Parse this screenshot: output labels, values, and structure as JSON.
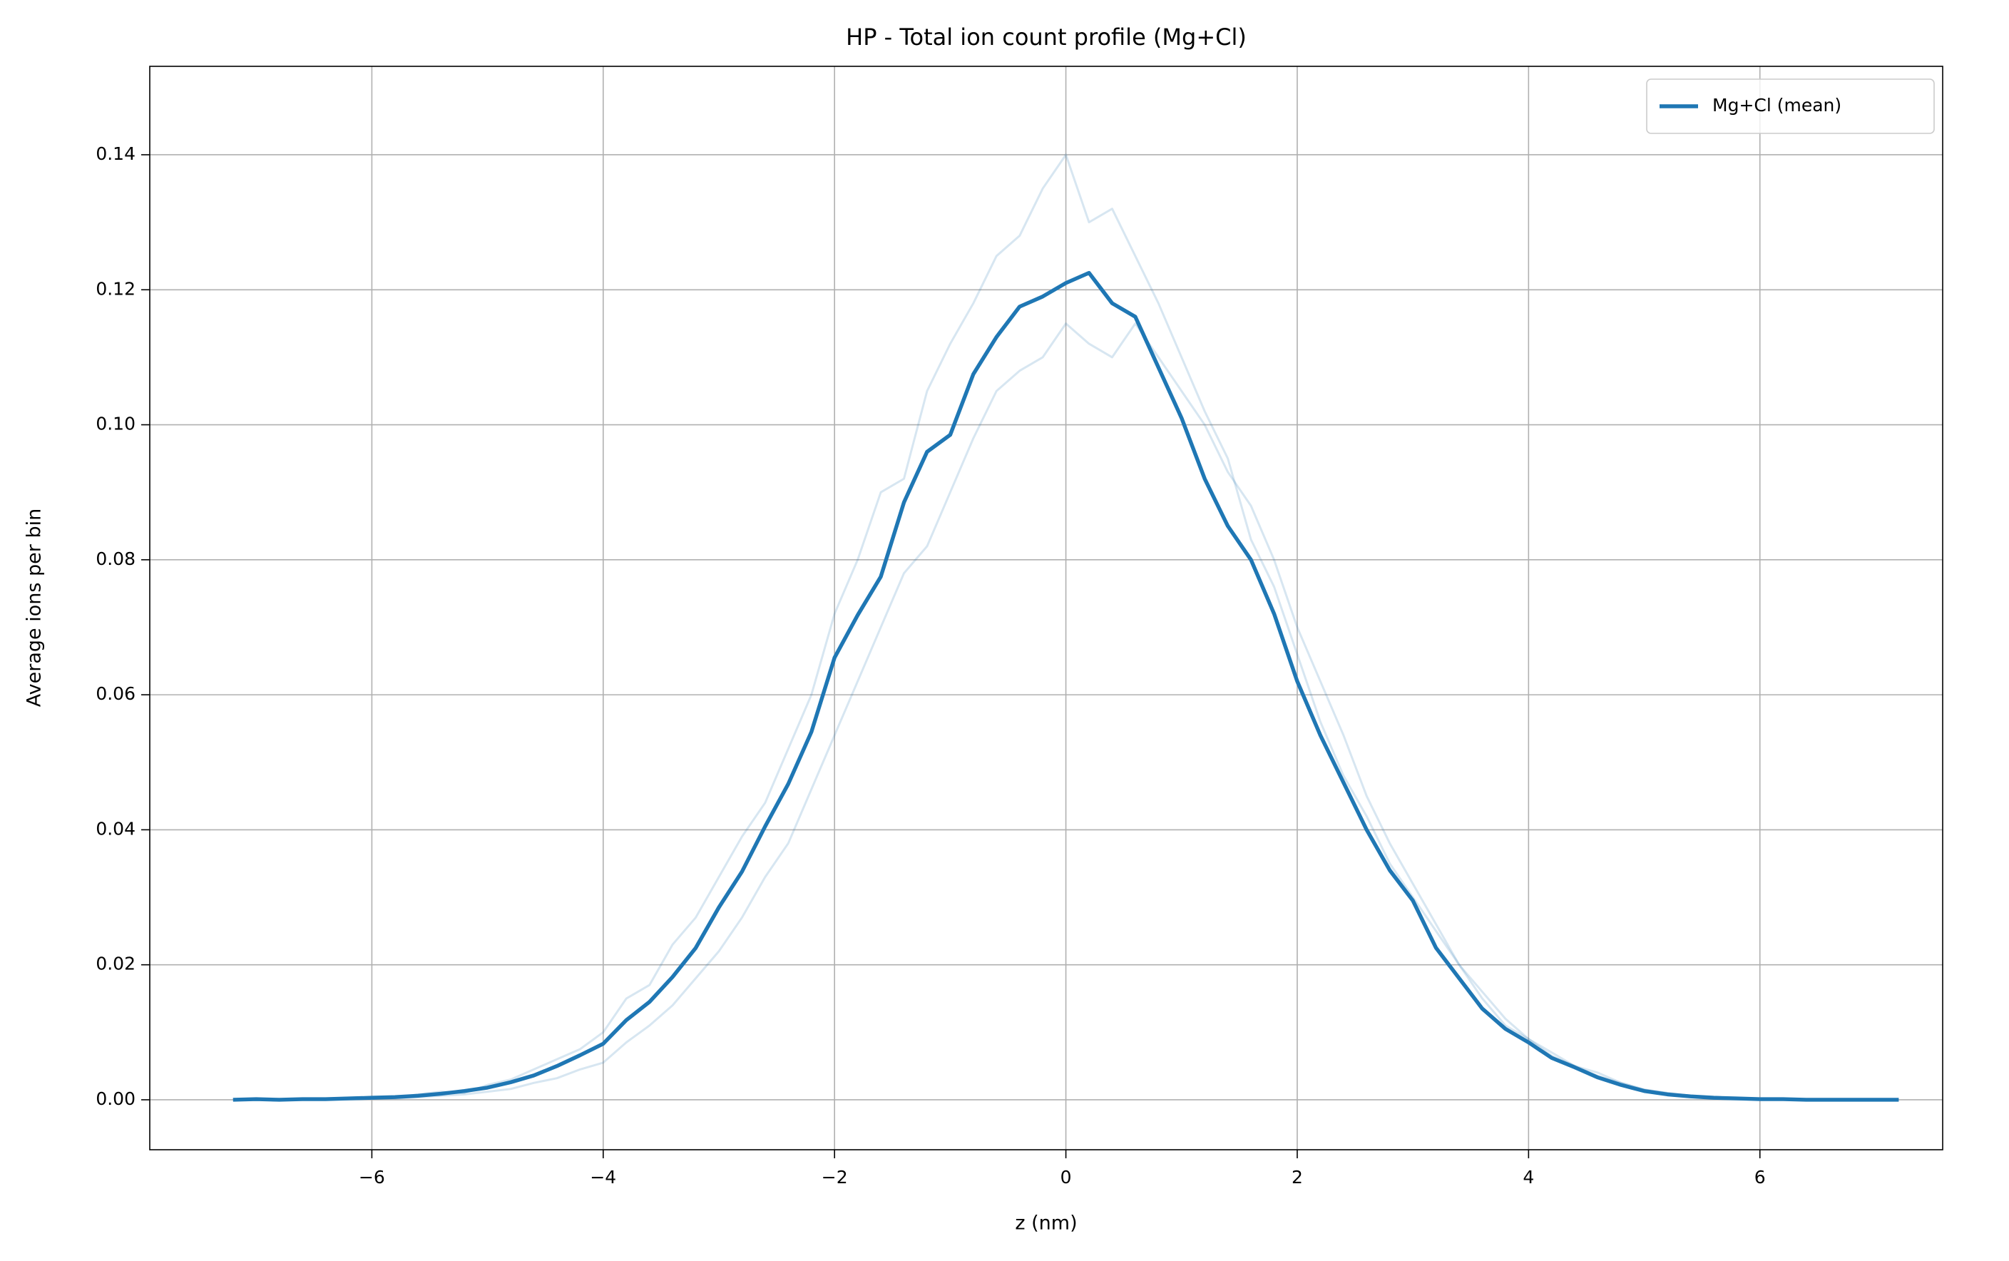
{
  "chart_data": {
    "type": "line",
    "title": "HP - Total ion count profile (Mg+Cl)",
    "xlabel": "z (nm)",
    "ylabel": "Average ions per bin",
    "x": [
      -7.2,
      -7.0,
      -6.8,
      -6.6,
      -6.4,
      -6.2,
      -6.0,
      -5.8,
      -5.6,
      -5.4,
      -5.2,
      -5.0,
      -4.8,
      -4.6,
      -4.4,
      -4.2,
      -4.0,
      -3.8,
      -3.6,
      -3.4,
      -3.2,
      -3.0,
      -2.8,
      -2.6,
      -2.4,
      -2.2,
      -2.0,
      -1.8,
      -1.6,
      -1.4,
      -1.2,
      -1.0,
      -0.8,
      -0.6,
      -0.4,
      -0.2,
      0,
      0.2,
      0.4,
      0.6,
      0.8,
      1.0,
      1.2,
      1.4,
      1.6,
      1.8,
      2.0,
      2.2,
      2.4,
      2.6,
      2.8,
      3.0,
      3.2,
      3.4,
      3.6,
      3.8,
      4.0,
      4.2,
      4.4,
      4.6,
      4.8,
      5.0,
      5.2,
      5.4,
      5.6,
      5.8,
      6.0,
      6.2,
      6.4,
      6.6,
      6.8,
      7.0,
      7.2
    ],
    "series": [
      {
        "color": "#1f77b4",
        "alpha": 0.18,
        "width": 3,
        "values": [
          0,
          0,
          0.0001,
          0,
          0.0002,
          0.0003,
          0.0004,
          0.0003,
          0.0008,
          0.0012,
          0.001,
          0.0022,
          0.003,
          0.0045,
          0.006,
          0.0075,
          0.01,
          0.015,
          0.017,
          0.023,
          0.027,
          0.033,
          0.039,
          0.044,
          0.052,
          0.06,
          0.072,
          0.08,
          0.09,
          0.092,
          0.105,
          0.112,
          0.118,
          0.125,
          0.128,
          0.135,
          0.14,
          0.13,
          0.132,
          0.125,
          0.118,
          0.11,
          0.102,
          0.095,
          0.083,
          0.076,
          0.066,
          0.056,
          0.048,
          0.042,
          0.035,
          0.03,
          0.025,
          0.02,
          0.015,
          0.011,
          0.009,
          0.007,
          0.005,
          0.004,
          0.0025,
          0.0015,
          0.001,
          0.0006,
          0.0004,
          0.0002,
          0.0001,
          0,
          0.0001,
          0,
          0,
          0,
          0
        ]
      },
      {
        "color": "#1f77b4",
        "alpha": 0.18,
        "width": 3,
        "values": [
          0.0001,
          0,
          0,
          0.0001,
          0,
          0.0001,
          0.0002,
          0.0002,
          0.0004,
          0.0006,
          0.0008,
          0.0012,
          0.0016,
          0.0025,
          0.0032,
          0.0045,
          0.0055,
          0.0085,
          0.011,
          0.014,
          0.018,
          0.022,
          0.027,
          0.033,
          0.038,
          0.046,
          0.054,
          0.062,
          0.07,
          0.078,
          0.082,
          0.09,
          0.098,
          0.105,
          0.108,
          0.11,
          0.115,
          0.112,
          0.11,
          0.115,
          0.11,
          0.105,
          0.1,
          0.093,
          0.088,
          0.08,
          0.07,
          0.062,
          0.054,
          0.045,
          0.038,
          0.032,
          0.026,
          0.02,
          0.016,
          0.012,
          0.009,
          0.0065,
          0.005,
          0.0035,
          0.0025,
          0.0015,
          0.001,
          0.0006,
          0.0003,
          0.0002,
          0.0001,
          0.0001,
          0,
          0,
          0,
          0,
          0
        ]
      },
      {
        "name": "Mg+Cl (mean)",
        "color": "#1f77b4",
        "alpha": 1,
        "width": 5.4,
        "values": [
          0,
          0.0001,
          0,
          0.0001,
          0.0001,
          0.0002,
          0.0003,
          0.0004,
          0.0006,
          0.0009,
          0.0013,
          0.0018,
          0.0026,
          0.0036,
          0.005,
          0.0066,
          0.0083,
          0.0118,
          0.0145,
          0.0182,
          0.0225,
          0.0285,
          0.0338,
          0.0405,
          0.0468,
          0.0545,
          0.0655,
          0.0718,
          0.0775,
          0.0885,
          0.096,
          0.0985,
          0.1075,
          0.113,
          0.1175,
          0.119,
          0.121,
          0.1225,
          0.118,
          0.116,
          0.1085,
          0.101,
          0.092,
          0.085,
          0.08,
          0.072,
          0.062,
          0.054,
          0.047,
          0.04,
          0.034,
          0.0295,
          0.0225,
          0.018,
          0.0135,
          0.0105,
          0.0085,
          0.0062,
          0.0048,
          0.0033,
          0.0022,
          0.0013,
          0.0008,
          0.0005,
          0.0003,
          0.0002,
          0.0001,
          0.0001,
          0,
          0,
          0,
          0,
          0
        ]
      }
    ],
    "xlim": [
      -7.92,
      7.58
    ],
    "ylim": [
      -0.0074,
      0.1531
    ],
    "xticks": [
      {
        "value": -6,
        "label": "−6"
      },
      {
        "value": -4,
        "label": "−4"
      },
      {
        "value": -2,
        "label": "−2"
      },
      0,
      2,
      4,
      6
    ],
    "yticks": [
      {
        "value": 0,
        "label": "0.00"
      },
      {
        "value": 0.02,
        "label": "0.02"
      },
      {
        "value": 0.04,
        "label": "0.04"
      },
      {
        "value": 0.06,
        "label": "0.06"
      },
      {
        "value": 0.08,
        "label": "0.08"
      },
      {
        "value": 0.1,
        "label": "0.10"
      },
      {
        "value": 0.12,
        "label": "0.12"
      },
      {
        "value": 0.14,
        "label": "0.14"
      }
    ],
    "grid": true,
    "legend": "upper right"
  }
}
